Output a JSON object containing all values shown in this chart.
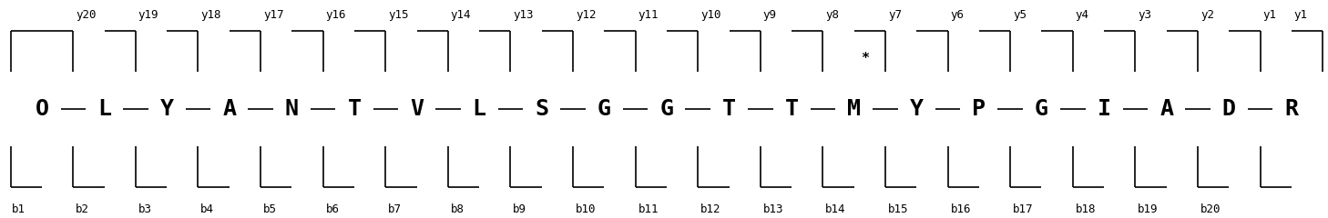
{
  "sequence": [
    "O",
    "L",
    "Y",
    "A",
    "N",
    "T",
    "V",
    "L",
    "S",
    "G",
    "G",
    "T",
    "T",
    "M",
    "Y",
    "P",
    "G",
    "I",
    "A",
    "D",
    "R"
  ],
  "b_ions": [
    "b1",
    "b2",
    "b3",
    "b4",
    "b5",
    "b6",
    "b7",
    "b8",
    "b9",
    "b10",
    "b11",
    "b12",
    "b13",
    "b14",
    "b15",
    "b16",
    "b17",
    "b18",
    "b19",
    "b20"
  ],
  "y_ions": [
    "y20",
    "y19",
    "y18",
    "y17",
    "y16",
    "y15",
    "y14",
    "y13",
    "y12",
    "y11",
    "y10",
    "y9",
    "y8",
    "y7",
    "y6",
    "y5",
    "y4",
    "y3",
    "y2",
    "y1"
  ],
  "modified_residue_index": 13,
  "background_color": "#ffffff",
  "line_color": "#000000",
  "text_color": "#000000",
  "aa_fontsize": 18,
  "label_fontsize": 9,
  "font_family": "monospace"
}
